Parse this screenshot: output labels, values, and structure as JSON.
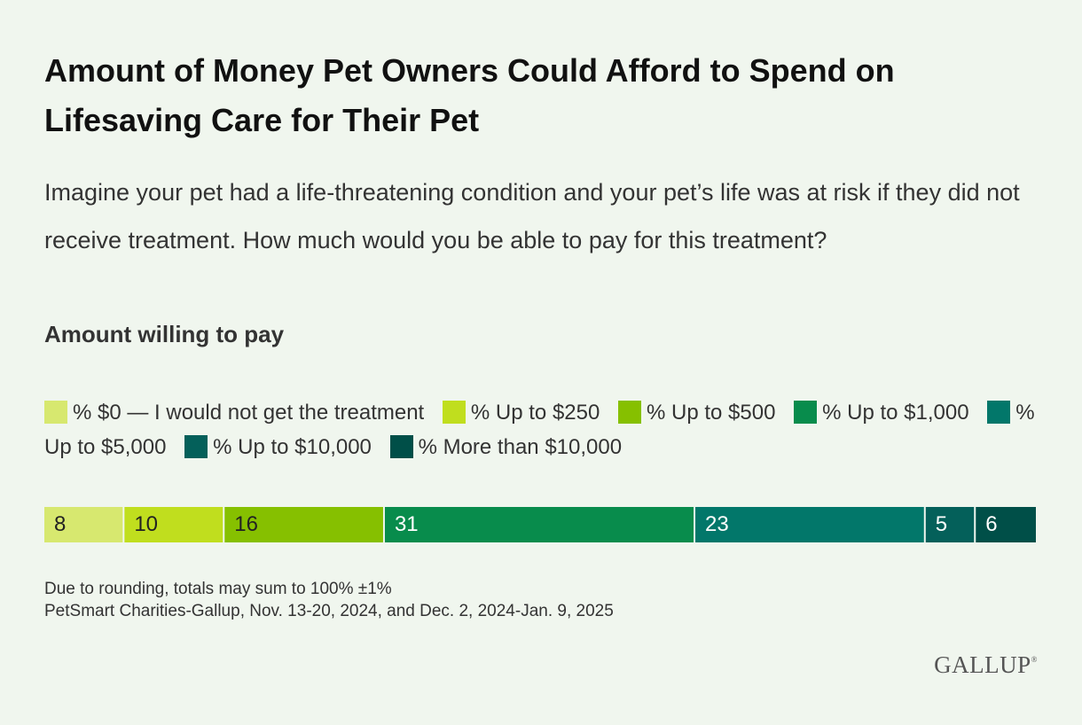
{
  "title": "Amount of Money Pet Owners Could Afford to Spend on Lifesaving Care for Their Pet",
  "question": "Imagine your pet had a life-threatening condition and your pet’s life was at risk if they did not receive treatment. How much would you be able to pay for this treatment?",
  "subhead": "Amount willing to pay",
  "notes": {
    "rounding": "Due to rounding, totals may sum to 100% ±1%",
    "source": "PetSmart Charities-Gallup, Nov. 13-20, 2024, and Dec. 2, 2024-Jan. 9, 2025"
  },
  "logo": {
    "name": "GALLUP",
    "mark": "®"
  },
  "chart_data": {
    "type": "bar",
    "orientation": "horizontal-stacked",
    "categories": [
      "Amount willing to pay"
    ],
    "series": [
      {
        "name": "% $0 — I would not get the treatment",
        "values": [
          8
        ],
        "color": "#d7e86f"
      },
      {
        "name": "% Up to $250",
        "values": [
          10
        ],
        "color": "#c0de1e"
      },
      {
        "name": "% Up to $500",
        "values": [
          16
        ],
        "color": "#86c000"
      },
      {
        "name": "% Up to $1,000",
        "values": [
          31
        ],
        "color": "#088c4c"
      },
      {
        "name": "% Up to $5,000",
        "values": [
          23
        ],
        "color": "#02776a"
      },
      {
        "name": "% Up to $10,000",
        "values": [
          5
        ],
        "color": "#04605a"
      },
      {
        "name": "% More than $10,000",
        "values": [
          6
        ],
        "color": "#004f48"
      }
    ],
    "xlim": [
      0,
      99
    ],
    "legend": "top",
    "data_labels": true,
    "grid": false
  }
}
